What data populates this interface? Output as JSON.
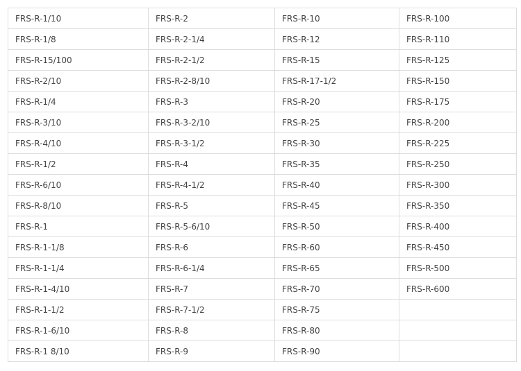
{
  "table": {
    "rows": [
      [
        "FRS-R-1/10",
        "FRS-R-2",
        "FRS-R-10",
        "FRS-R-100"
      ],
      [
        "FRS-R-1/8",
        "FRS-R-2-1/4",
        "FRS-R-12",
        "FRS-R-110"
      ],
      [
        "FRS-R-15/100",
        "FRS-R-2-1/2",
        "FRS-R-15",
        "FRS-R-125"
      ],
      [
        "FRS-R-2/10",
        "FRS-R-2-8/10",
        "FRS-R-17-1/2",
        "FRS-R-150"
      ],
      [
        "FRS-R-1/4",
        "FRS-R-3",
        "FRS-R-20",
        "FRS-R-175"
      ],
      [
        "FRS-R-3/10",
        "FRS-R-3-2/10",
        "FRS-R-25",
        "FRS-R-200"
      ],
      [
        "FRS-R-4/10",
        "FRS-R-3-1/2",
        "FRS-R-30",
        "FRS-R-225"
      ],
      [
        "FRS-R-1/2",
        "FRS-R-4",
        "FRS-R-35",
        "FRS-R-250"
      ],
      [
        "FRS-R-6/10",
        "FRS-R-4-1/2",
        "FRS-R-40",
        "FRS-R-300"
      ],
      [
        "FRS-R-8/10",
        "FRS-R-5",
        "FRS-R-45",
        "FRS-R-350"
      ],
      [
        "FRS-R-1",
        "FRS-R-5-6/10",
        "FRS-R-50",
        "FRS-R-400"
      ],
      [
        "FRS-R-1-1/8",
        "FRS-R-6",
        "FRS-R-60",
        "FRS-R-450"
      ],
      [
        "FRS-R-1-1/4",
        "FRS-R-6-1/4",
        "FRS-R-65",
        "FRS-R-500"
      ],
      [
        "FRS-R-1-4/10",
        "FRS-R-7",
        "FRS-R-70",
        "FRS-R-600"
      ],
      [
        "FRS-R-1-1/2",
        "FRS-R-7-1/2",
        "FRS-R-75",
        ""
      ],
      [
        "FRS-R-1-6/10",
        "FRS-R-8",
        "FRS-R-80",
        ""
      ],
      [
        "FRS-R-1 8/10",
        "FRS-R-9",
        "FRS-R-90",
        ""
      ]
    ]
  }
}
